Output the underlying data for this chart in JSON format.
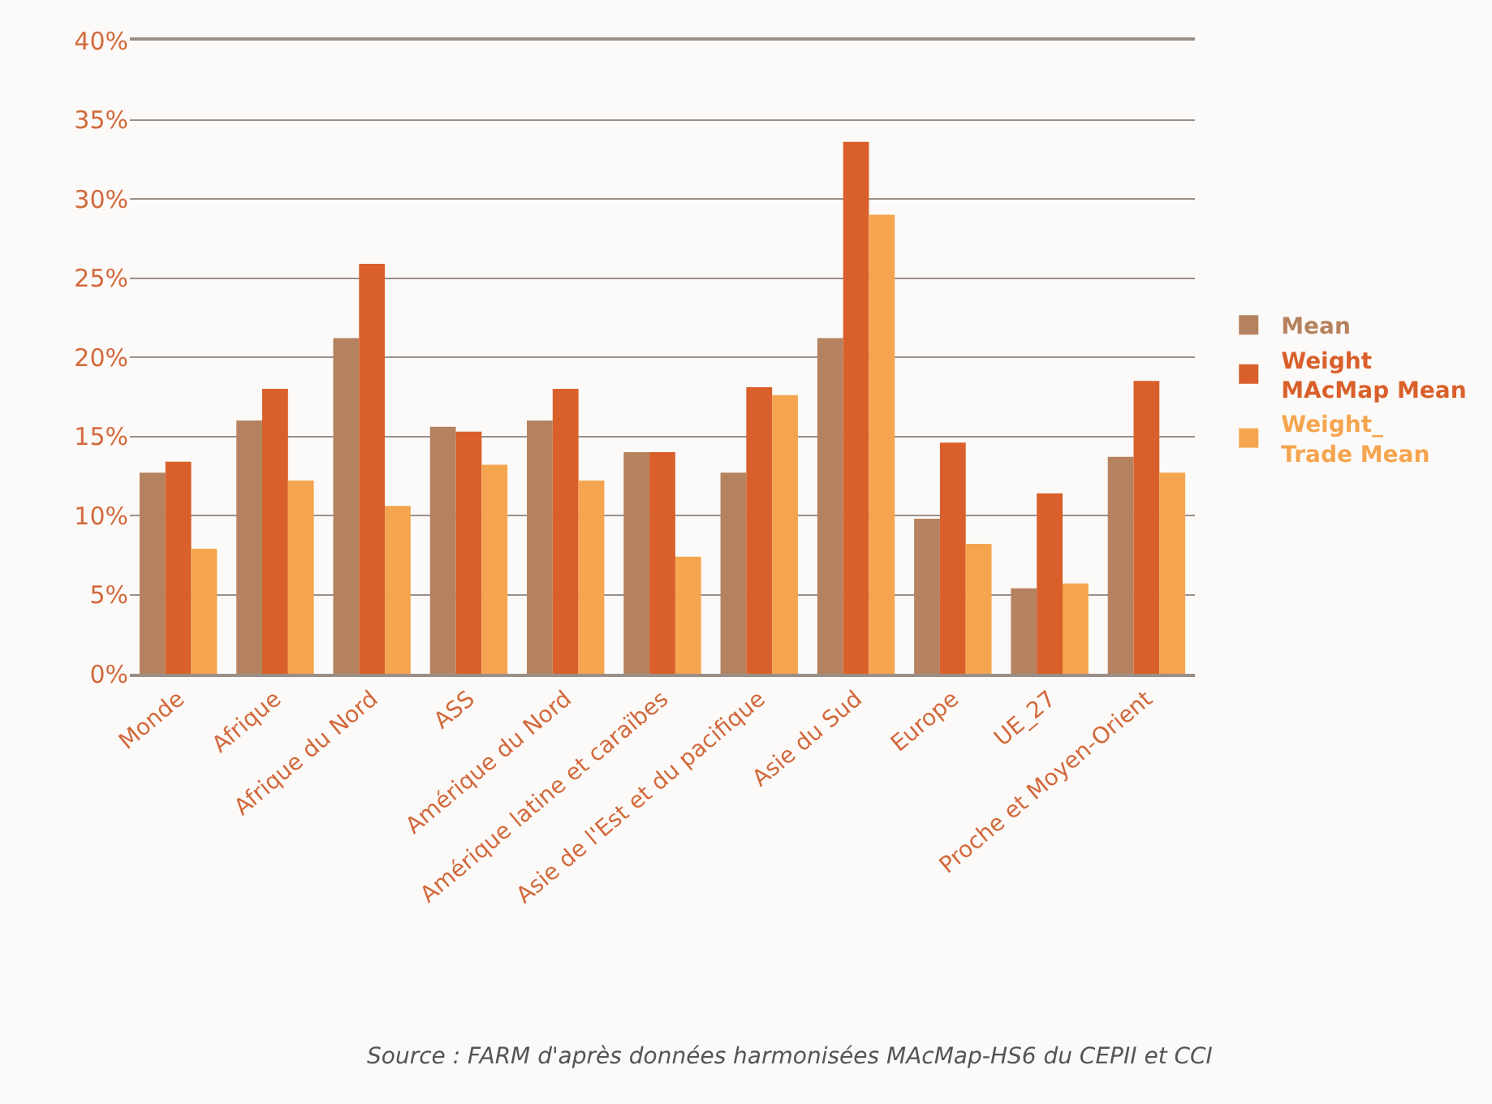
{
  "chart_data": {
    "type": "bar",
    "categories": [
      "Monde",
      "Afrique",
      "Afrique du Nord",
      "ASS",
      "Amérique du Nord",
      "Amérique latine et caraïbes",
      "Asie de l'Est et du pacifique",
      "Asie du Sud",
      "Europe",
      "UE_27",
      "Proche et Moyen-Orient"
    ],
    "series": [
      {
        "name": "Mean",
        "color": "#b5825f",
        "values": [
          12.7,
          16,
          21.2,
          15.6,
          16,
          14,
          12.7,
          21.2,
          9.8,
          5.4,
          13.7
        ]
      },
      {
        "name": "Weight\nMAcMap Mean",
        "color": "#d9602b",
        "values": [
          13.4,
          18,
          25.9,
          15.3,
          18,
          14,
          18.1,
          33.6,
          14.6,
          11.4,
          18.5
        ]
      },
      {
        "name": "Weight_\nTrade Mean",
        "color": "#f5a54f",
        "values": [
          7.9,
          12.2,
          10.6,
          13.2,
          12.2,
          7.4,
          17.6,
          29,
          8.2,
          5.7,
          12.7
        ]
      }
    ],
    "ylim": [
      0,
      40
    ],
    "yticks": [
      {
        "value": 0,
        "label": "0%"
      },
      {
        "value": 5,
        "label": "5%"
      },
      {
        "value": 10,
        "label": "10%"
      },
      {
        "value": 15,
        "label": "15%"
      },
      {
        "value": 20,
        "label": "20%"
      },
      {
        "value": 25,
        "label": "25%"
      },
      {
        "value": 30,
        "label": "30%"
      },
      {
        "value": 35,
        "label": "35%"
      },
      {
        "value": 40,
        "label": "40%"
      }
    ],
    "grid": "y",
    "legend": "right",
    "annotations": [
      "Source : FARM d'après données harmonisées MAcMap-HS6 du CEPII et CCI"
    ]
  }
}
